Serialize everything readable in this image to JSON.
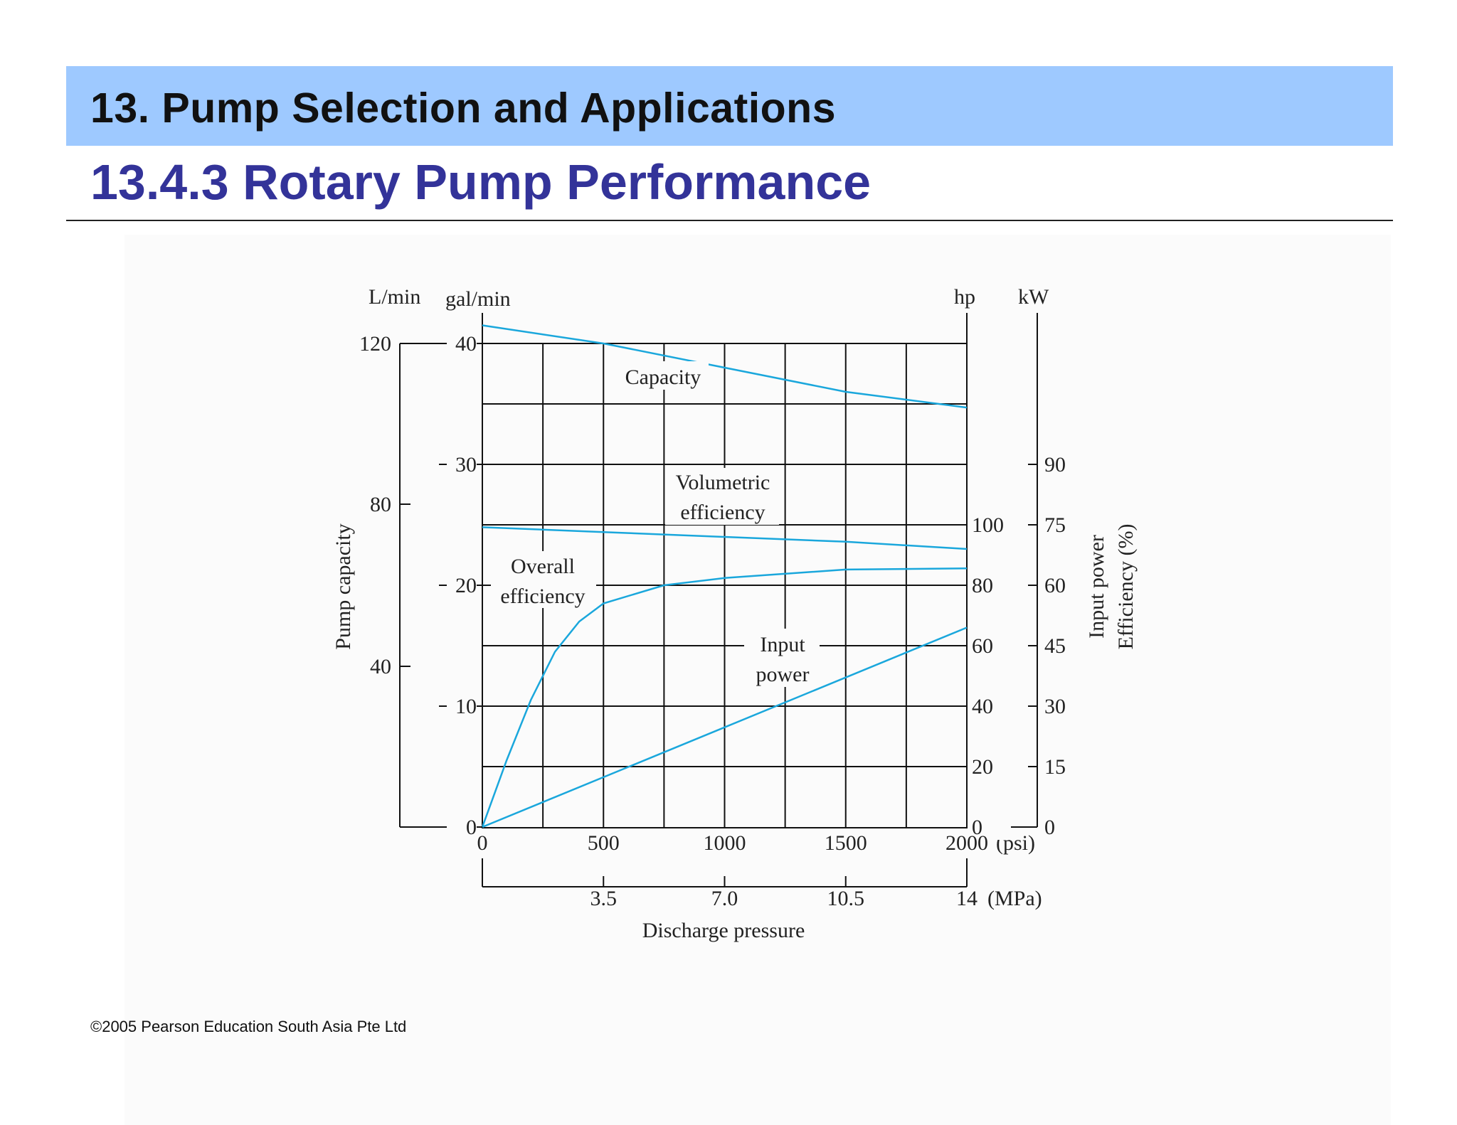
{
  "slide": {
    "heading": "13. Pump Selection and Applications",
    "subheading": "13.4.3 Rotary Pump Performance",
    "footer": "©2005 Pearson Education South Asia Pte Ltd",
    "colors": {
      "band": "#9ec9ff",
      "subheading": "#333399",
      "curve": "#1aa7dc"
    }
  },
  "chart_data": {
    "type": "line",
    "x_axis": {
      "label": "Discharge pressure",
      "unit": "(psi)",
      "range": [
        0,
        2000
      ],
      "ticks": [
        "0",
        "500",
        "1000",
        "1500",
        "2000"
      ]
    },
    "x_axis_secondary": {
      "unit": "(MPa)",
      "ticks": [
        "3.5",
        "7.0",
        "10.5",
        "14"
      ]
    },
    "y_axis_left_outer": {
      "label": "Pump capacity",
      "unit": "L/min",
      "ticks": [
        "120",
        "80",
        "40"
      ]
    },
    "y_axis_left": {
      "unit": "gal/min",
      "range": [
        0,
        40
      ],
      "ticks": [
        "40",
        "30",
        "20",
        "10",
        "0"
      ]
    },
    "y_axis_right": {
      "unit": "hp",
      "ticks": [
        "100",
        "80",
        "60",
        "40",
        "20",
        "0"
      ]
    },
    "y_axis_right_outer": {
      "label_line1": "Input power",
      "label_line2": "Efficiency (%)",
      "unit": "kW",
      "ticks": [
        "90",
        "75",
        "60",
        "45",
        "30",
        "15",
        "0"
      ]
    },
    "grid": true,
    "series": [
      {
        "name": "Capacity",
        "x": [
          0,
          500,
          1000,
          1500,
          2000
        ],
        "y": [
          41.5,
          40,
          38,
          36,
          34.7
        ]
      },
      {
        "name": "Volumetric efficiency",
        "x": [
          0,
          500,
          1000,
          1500,
          2000
        ],
        "y": [
          24.8,
          24.4,
          24.0,
          23.6,
          23.0
        ]
      },
      {
        "name": "Overall efficiency",
        "x": [
          0,
          100,
          200,
          300,
          400,
          500,
          750,
          1000,
          1500,
          2000
        ],
        "y": [
          0,
          5.5,
          10.5,
          14.5,
          17.0,
          18.5,
          20.0,
          20.6,
          21.3,
          21.4
        ]
      },
      {
        "name": "Input power",
        "x": [
          0,
          2000
        ],
        "y": [
          0,
          16.5
        ]
      }
    ],
    "curve_labels": {
      "capacity": "Capacity",
      "volumetric_1": "Volumetric",
      "volumetric_2": "efficiency",
      "overall_1": "Overall",
      "overall_2": "efficiency",
      "input_1": "Input",
      "input_2": "power"
    }
  }
}
